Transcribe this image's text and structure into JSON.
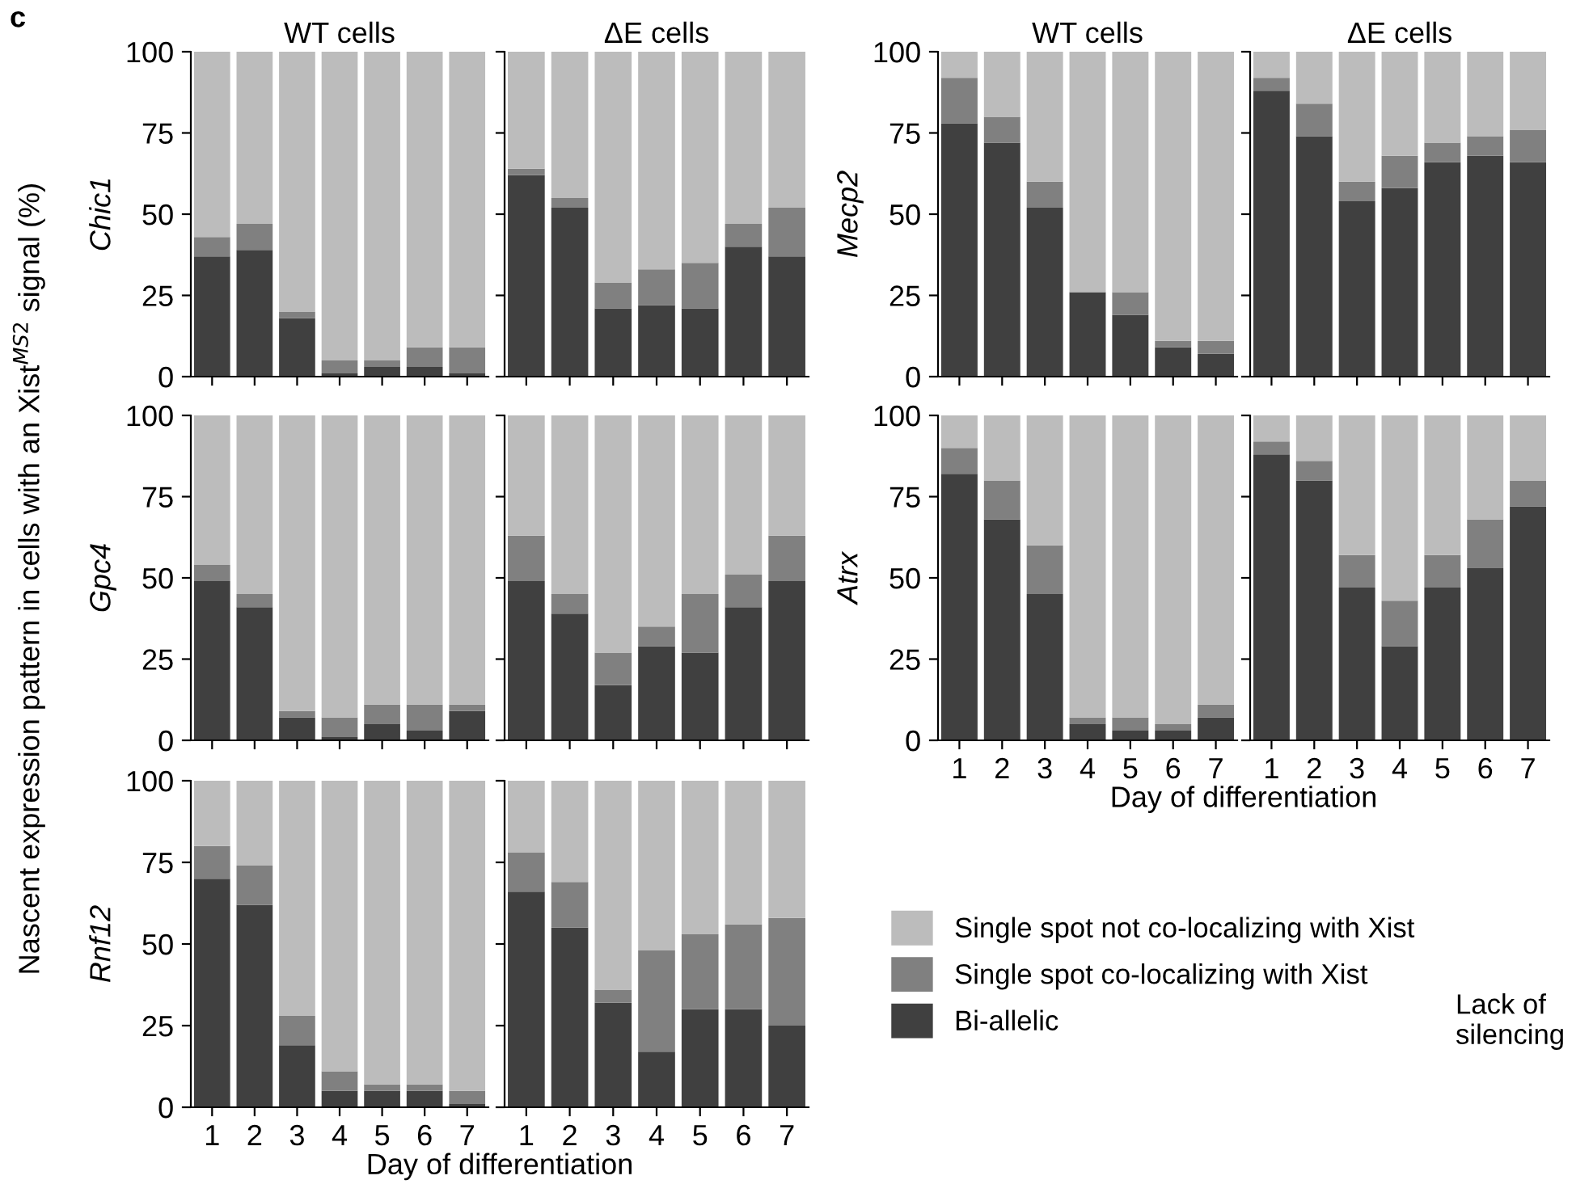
{
  "chart_data": [
    {
      "type": "bar",
      "stacked": true,
      "title": "WT cells",
      "ylabel": "Chic1",
      "categories": [
        "1",
        "2",
        "3",
        "4",
        "5",
        "6",
        "7"
      ],
      "ylim": [
        0,
        100
      ],
      "yticks": [
        0,
        25,
        50,
        75,
        100
      ],
      "tick_labels": "y",
      "annotations": [
        "c",
        "Nascent expression pattern in cells with an Xist$^{MS2}$ signal (%)"
      ],
      "series": [
        {
          "color": "#404040",
          "values": [
            37,
            39,
            18,
            1,
            3,
            3,
            1
          ]
        },
        {
          "color": "#808080",
          "values": [
            6,
            8,
            2,
            4,
            2,
            6,
            8
          ]
        },
        {
          "color": "#bcbcbc",
          "values": [
            57,
            53,
            80,
            95,
            95,
            91,
            91
          ]
        }
      ]
    },
    {
      "type": "bar",
      "stacked": true,
      "title": "ΔE cells",
      "categories": [
        "1",
        "2",
        "3",
        "4",
        "5",
        "6",
        "7"
      ],
      "ylim": [
        0,
        100
      ],
      "yticks": [
        0,
        25,
        50,
        75,
        100
      ],
      "tick_labels": false,
      "series": [
        {
          "color": "#404040",
          "values": [
            62,
            52,
            21,
            22,
            21,
            40,
            37
          ]
        },
        {
          "color": "#808080",
          "values": [
            2,
            3,
            8,
            11,
            14,
            7,
            15
          ]
        },
        {
          "color": "#bcbcbc",
          "values": [
            36,
            45,
            71,
            67,
            65,
            53,
            48
          ]
        }
      ]
    },
    {
      "type": "bar",
      "stacked": true,
      "title": "WT cells",
      "ylabel": "Mecp2",
      "categories": [
        "1",
        "2",
        "3",
        "4",
        "5",
        "6",
        "7"
      ],
      "ylim": [
        0,
        100
      ],
      "yticks": [
        0,
        25,
        50,
        75,
        100
      ],
      "tick_labels": "y",
      "series": [
        {
          "color": "#404040",
          "values": [
            78,
            72,
            52,
            26,
            19,
            9,
            7
          ]
        },
        {
          "color": "#808080",
          "values": [
            14,
            8,
            8,
            0,
            7,
            2,
            4
          ]
        },
        {
          "color": "#bcbcbc",
          "values": [
            8,
            20,
            40,
            74,
            74,
            89,
            89
          ]
        }
      ]
    },
    {
      "type": "bar",
      "stacked": true,
      "title": "ΔE cells",
      "categories": [
        "1",
        "2",
        "3",
        "4",
        "5",
        "6",
        "7"
      ],
      "ylim": [
        0,
        100
      ],
      "yticks": [
        0,
        25,
        50,
        75,
        100
      ],
      "tick_labels": false,
      "series": [
        {
          "color": "#404040",
          "values": [
            88,
            74,
            54,
            58,
            66,
            68,
            66
          ]
        },
        {
          "color": "#808080",
          "values": [
            4,
            10,
            6,
            10,
            6,
            6,
            10
          ]
        },
        {
          "color": "#bcbcbc",
          "values": [
            8,
            16,
            40,
            32,
            28,
            26,
            24
          ]
        }
      ]
    },
    {
      "type": "bar",
      "stacked": true,
      "ylabel": "Gpc4",
      "categories": [
        "1",
        "2",
        "3",
        "4",
        "5",
        "6",
        "7"
      ],
      "ylim": [
        0,
        100
      ],
      "yticks": [
        0,
        25,
        50,
        75,
        100
      ],
      "tick_labels": "y",
      "series": [
        {
          "color": "#404040",
          "values": [
            49,
            41,
            7,
            1,
            5,
            3,
            9
          ]
        },
        {
          "color": "#808080",
          "values": [
            5,
            4,
            2,
            6,
            6,
            8,
            2
          ]
        },
        {
          "color": "#bcbcbc",
          "values": [
            46,
            55,
            91,
            93,
            89,
            89,
            89
          ]
        }
      ]
    },
    {
      "type": "bar",
      "stacked": true,
      "categories": [
        "1",
        "2",
        "3",
        "4",
        "5",
        "6",
        "7"
      ],
      "ylim": [
        0,
        100
      ],
      "yticks": [
        0,
        25,
        50,
        75,
        100
      ],
      "tick_labels": false,
      "series": [
        {
          "color": "#404040",
          "values": [
            49,
            39,
            17,
            29,
            27,
            41,
            49
          ]
        },
        {
          "color": "#808080",
          "values": [
            14,
            6,
            10,
            6,
            18,
            10,
            14
          ]
        },
        {
          "color": "#bcbcbc",
          "values": [
            37,
            55,
            73,
            65,
            55,
            49,
            37
          ]
        }
      ]
    },
    {
      "type": "bar",
      "stacked": true,
      "ylabel": "Atrx",
      "xlabel": "Day of differentiation",
      "categories": [
        "1",
        "2",
        "3",
        "4",
        "5",
        "6",
        "7"
      ],
      "ylim": [
        0,
        100
      ],
      "yticks": [
        0,
        25,
        50,
        75,
        100
      ],
      "series": [
        {
          "color": "#404040",
          "values": [
            82,
            68,
            45,
            5,
            3,
            3,
            7
          ]
        },
        {
          "color": "#808080",
          "values": [
            8,
            12,
            15,
            2,
            4,
            2,
            4
          ]
        },
        {
          "color": "#bcbcbc",
          "values": [
            10,
            20,
            40,
            93,
            93,
            95,
            89
          ]
        }
      ]
    },
    {
      "type": "bar",
      "stacked": true,
      "categories": [
        "1",
        "2",
        "3",
        "4",
        "5",
        "6",
        "7"
      ],
      "ylim": [
        0,
        100
      ],
      "yticks": [
        0,
        25,
        50,
        75,
        100
      ],
      "tick_labels": "x",
      "legend": "bottom",
      "annotations": [
        "Lack of silencing"
      ],
      "series": [
        {
          "name": "Bi-allelic",
          "color": "#404040",
          "values": [
            88,
            80,
            47,
            29,
            47,
            53,
            72
          ]
        },
        {
          "name": "Single spot co-localizing with Xist",
          "color": "#808080",
          "values": [
            4,
            6,
            10,
            14,
            10,
            15,
            8
          ]
        },
        {
          "name": "Single spot not co-localizing with Xist",
          "color": "#bcbcbc",
          "values": [
            8,
            14,
            43,
            57,
            43,
            32,
            20
          ]
        }
      ]
    },
    {
      "type": "bar",
      "stacked": true,
      "ylabel": "Rnf12",
      "xlabel": "Day of differentiation",
      "categories": [
        "1",
        "2",
        "3",
        "4",
        "5",
        "6",
        "7"
      ],
      "ylim": [
        0,
        100
      ],
      "yticks": [
        0,
        25,
        50,
        75,
        100
      ],
      "series": [
        {
          "color": "#404040",
          "values": [
            70,
            62,
            19,
            5,
            5,
            5,
            1
          ]
        },
        {
          "color": "#808080",
          "values": [
            10,
            12,
            9,
            6,
            2,
            2,
            4
          ]
        },
        {
          "color": "#bcbcbc",
          "values": [
            20,
            26,
            72,
            89,
            93,
            93,
            95
          ]
        }
      ]
    },
    {
      "type": "bar",
      "stacked": true,
      "categories": [
        "1",
        "2",
        "3",
        "4",
        "5",
        "6",
        "7"
      ],
      "ylim": [
        0,
        100
      ],
      "yticks": [
        0,
        25,
        50,
        75,
        100
      ],
      "tick_labels": "x",
      "series": [
        {
          "color": "#404040",
          "values": [
            66,
            55,
            32,
            17,
            30,
            30,
            25
          ]
        },
        {
          "color": "#808080",
          "values": [
            12,
            14,
            4,
            31,
            23,
            26,
            33
          ]
        },
        {
          "color": "#bcbcbc",
          "values": [
            22,
            31,
            64,
            52,
            47,
            44,
            42
          ]
        }
      ]
    }
  ]
}
